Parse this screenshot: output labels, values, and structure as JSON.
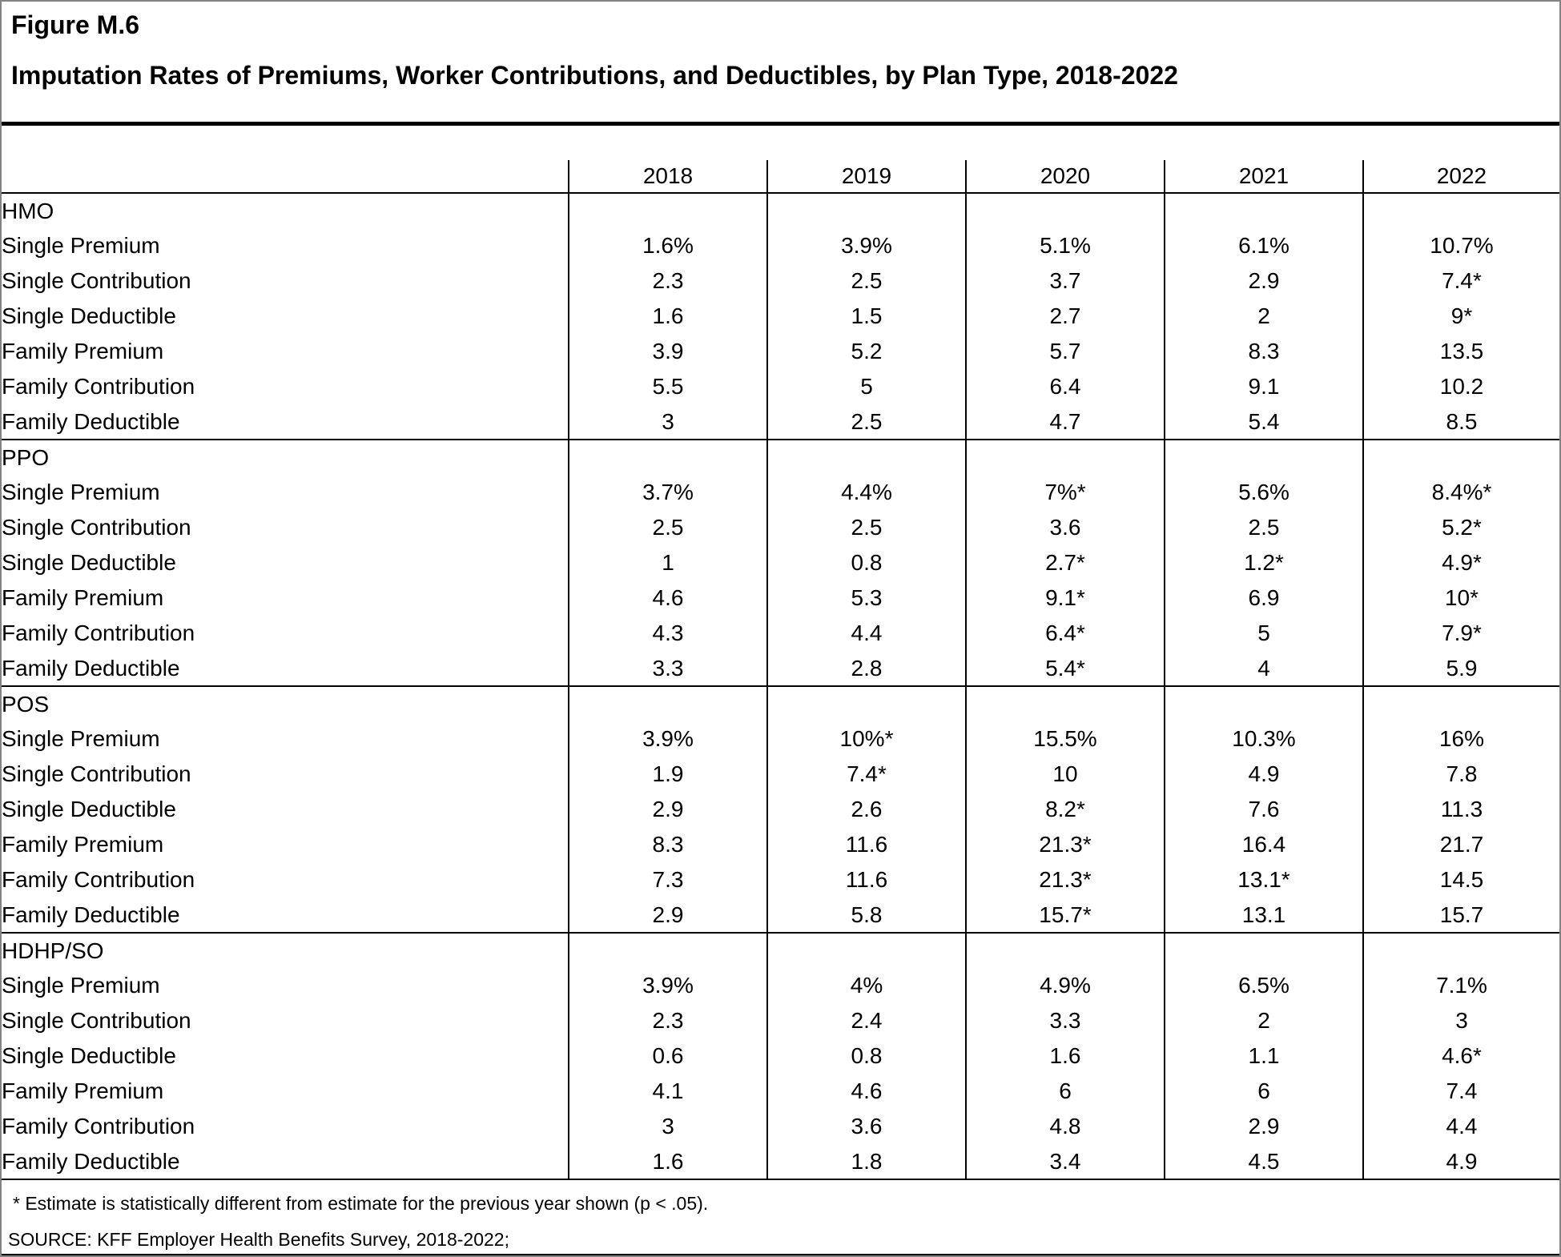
{
  "figure": {
    "label": "Figure M.6",
    "title": "Imputation Rates of Premiums, Worker Contributions, and Deductibles, by Plan Type, 2018-2022"
  },
  "table": {
    "years": [
      "2018",
      "2019",
      "2020",
      "2021",
      "2022"
    ],
    "sections": [
      {
        "name": "HMO",
        "rows": [
          {
            "label": "Single Premium",
            "values": [
              "1.6%",
              "3.9%",
              "5.1%",
              "6.1%",
              "10.7%"
            ]
          },
          {
            "label": "Single Contribution",
            "values": [
              "2.3",
              "2.5",
              "3.7",
              "2.9",
              "7.4*"
            ]
          },
          {
            "label": "Single Deductible",
            "values": [
              "1.6",
              "1.5",
              "2.7",
              "2",
              "9*"
            ]
          },
          {
            "label": "Family Premium",
            "values": [
              "3.9",
              "5.2",
              "5.7",
              "8.3",
              "13.5"
            ]
          },
          {
            "label": "Family Contribution",
            "values": [
              "5.5",
              "5",
              "6.4",
              "9.1",
              "10.2"
            ]
          },
          {
            "label": "Family Deductible",
            "values": [
              "3",
              "2.5",
              "4.7",
              "5.4",
              "8.5"
            ]
          }
        ]
      },
      {
        "name": "PPO",
        "rows": [
          {
            "label": "Single Premium",
            "values": [
              "3.7%",
              "4.4%",
              "7%*",
              "5.6%",
              "8.4%*"
            ]
          },
          {
            "label": "Single Contribution",
            "values": [
              "2.5",
              "2.5",
              "3.6",
              "2.5",
              "5.2*"
            ]
          },
          {
            "label": "Single Deductible",
            "values": [
              "1",
              "0.8",
              "2.7*",
              "1.2*",
              "4.9*"
            ]
          },
          {
            "label": "Family Premium",
            "values": [
              "4.6",
              "5.3",
              "9.1*",
              "6.9",
              "10*"
            ]
          },
          {
            "label": "Family Contribution",
            "values": [
              "4.3",
              "4.4",
              "6.4*",
              "5",
              "7.9*"
            ]
          },
          {
            "label": "Family Deductible",
            "values": [
              "3.3",
              "2.8",
              "5.4*",
              "4",
              "5.9"
            ]
          }
        ]
      },
      {
        "name": "POS",
        "rows": [
          {
            "label": "Single Premium",
            "values": [
              "3.9%",
              "10%*",
              "15.5%",
              "10.3%",
              "16%"
            ]
          },
          {
            "label": "Single Contribution",
            "values": [
              "1.9",
              "7.4*",
              "10",
              "4.9",
              "7.8"
            ]
          },
          {
            "label": "Single Deductible",
            "values": [
              "2.9",
              "2.6",
              "8.2*",
              "7.6",
              "11.3"
            ]
          },
          {
            "label": "Family Premium",
            "values": [
              "8.3",
              "11.6",
              "21.3*",
              "16.4",
              "21.7"
            ]
          },
          {
            "label": "Family Contribution",
            "values": [
              "7.3",
              "11.6",
              "21.3*",
              "13.1*",
              "14.5"
            ]
          },
          {
            "label": "Family Deductible",
            "values": [
              "2.9",
              "5.8",
              "15.7*",
              "13.1",
              "15.7"
            ]
          }
        ]
      },
      {
        "name": "HDHP/SO",
        "rows": [
          {
            "label": "Single Premium",
            "values": [
              "3.9%",
              "4%",
              "4.9%",
              "6.5%",
              "7.1%"
            ]
          },
          {
            "label": "Single Contribution",
            "values": [
              "2.3",
              "2.4",
              "3.3",
              "2",
              "3"
            ]
          },
          {
            "label": "Single Deductible",
            "values": [
              "0.6",
              "0.8",
              "1.6",
              "1.1",
              "4.6*"
            ]
          },
          {
            "label": "Family Premium",
            "values": [
              "4.1",
              "4.6",
              "6",
              "6",
              "7.4"
            ]
          },
          {
            "label": "Family Contribution",
            "values": [
              "3",
              "3.6",
              "4.8",
              "2.9",
              "4.4"
            ]
          },
          {
            "label": "Family Deductible",
            "values": [
              "1.6",
              "1.8",
              "3.4",
              "4.5",
              "4.9"
            ]
          }
        ]
      }
    ]
  },
  "footnotes": {
    "asterisk": "* Estimate is statistically different from estimate for the previous year shown (p < .05).",
    "source": "SOURCE: KFF Employer Health Benefits Survey, 2018-2022;"
  }
}
